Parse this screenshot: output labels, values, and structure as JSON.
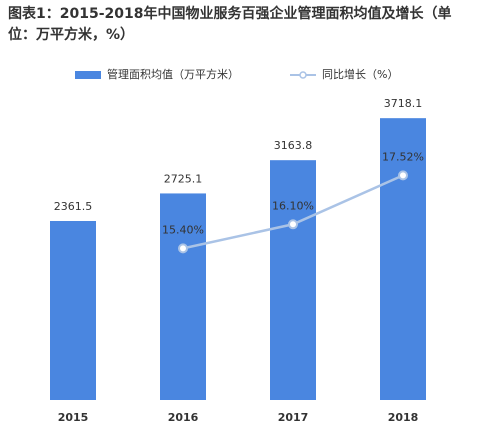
{
  "chart_data": {
    "type": "bar",
    "title": "图表1：2015-2018年中国物业服务百强企业管理面积均值及增长（单位：万平方米，%）",
    "categories": [
      "2015",
      "2016",
      "2017",
      "2018"
    ],
    "series": [
      {
        "name": "管理面积均值（万平方米）",
        "type": "bar",
        "color": "#4a86e0",
        "values": [
          2361.5,
          2725.1,
          3163.8,
          3718.1
        ]
      },
      {
        "name": "同比增长（%）",
        "type": "line",
        "axis": "y2",
        "color": "#aac3e6",
        "values": [
          null,
          15.4,
          16.1,
          17.52
        ],
        "value_labels": [
          null,
          "15.40%",
          "16.10%",
          "17.52%"
        ]
      }
    ],
    "ylim": [
      0,
      5000
    ],
    "y2lim": [
      11,
      22
    ],
    "legend": "top"
  }
}
